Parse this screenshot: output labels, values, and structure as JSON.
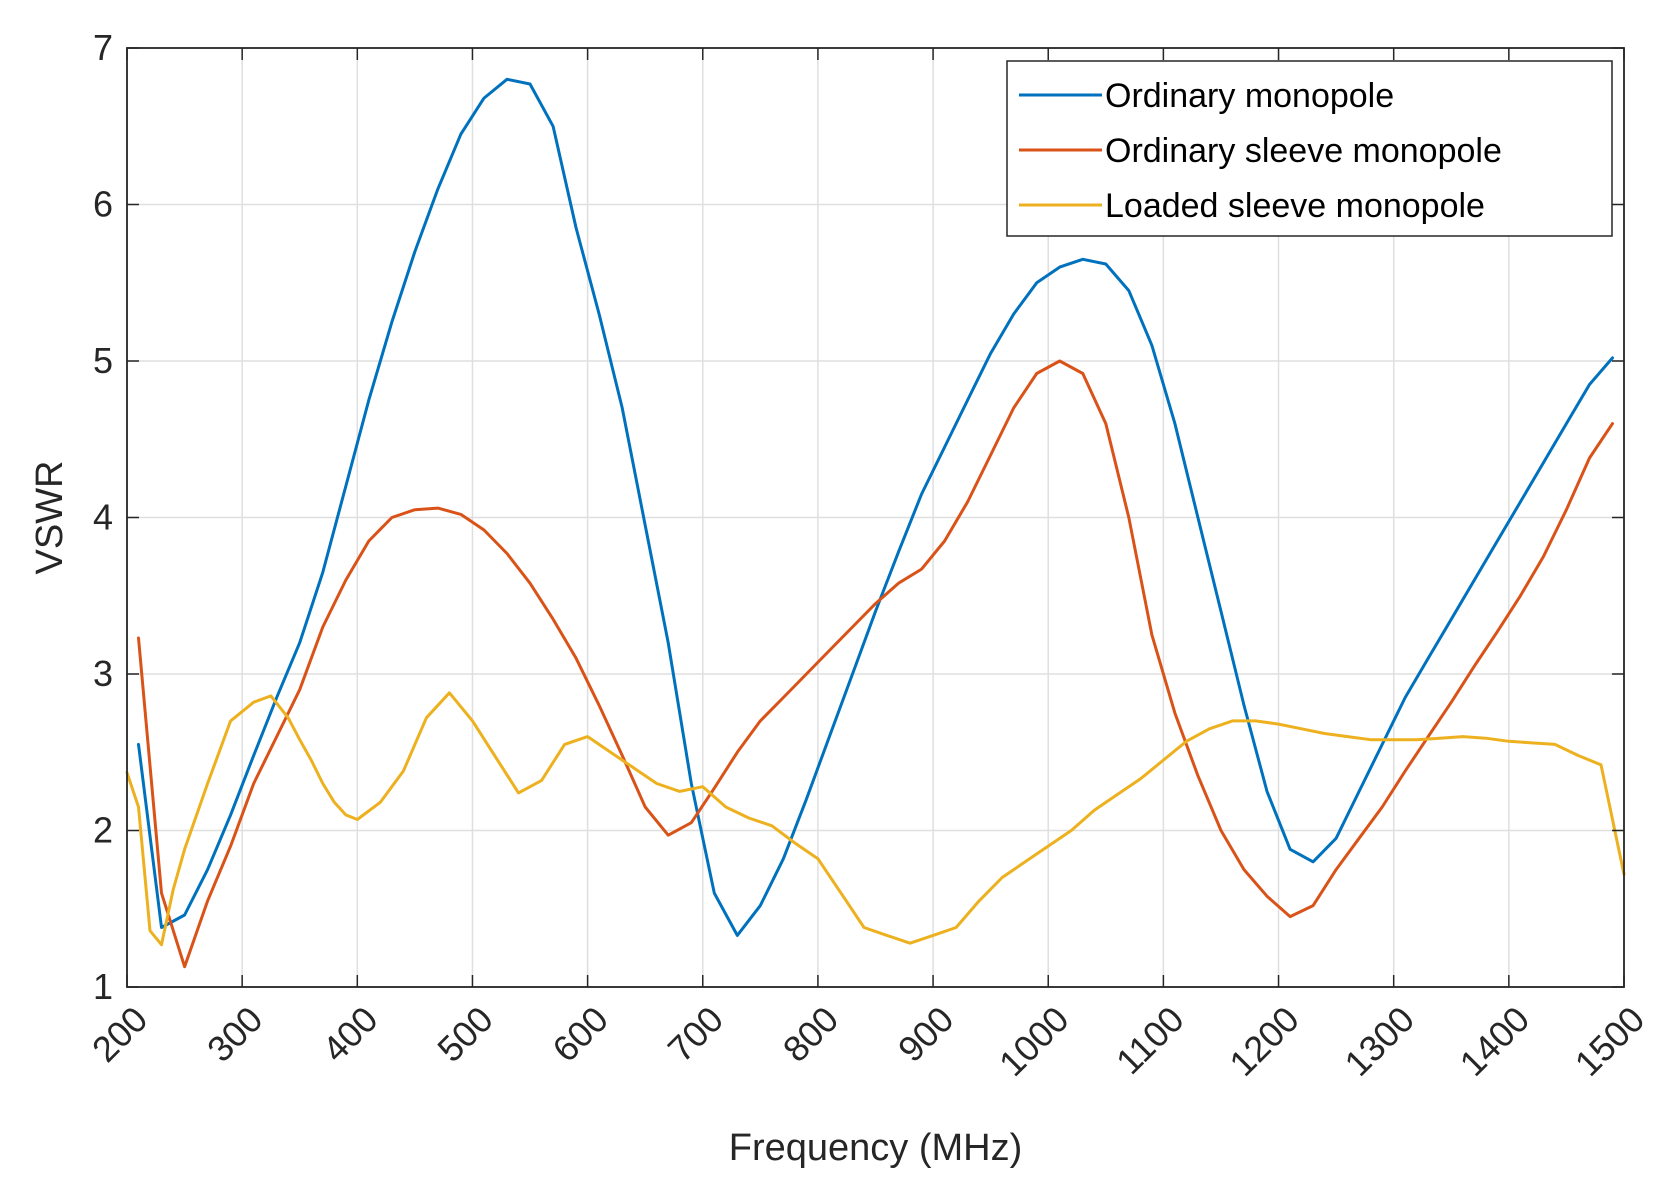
{
  "chart_data": {
    "type": "line",
    "xlabel": "Frequency (MHz)",
    "ylabel": "VSWR",
    "xlim": [
      200,
      1500
    ],
    "ylim": [
      1,
      7
    ],
    "xticks": [
      200,
      300,
      400,
      500,
      600,
      700,
      800,
      900,
      1000,
      1100,
      1200,
      1300,
      1400,
      1500
    ],
    "yticks": [
      1,
      2,
      3,
      4,
      5,
      6,
      7
    ],
    "grid": true,
    "legend_location": "top-right",
    "series": [
      {
        "name": "Ordinary monopole",
        "color": "#0072BD",
        "x": [
          210,
          230,
          250,
          270,
          290,
          310,
          330,
          350,
          370,
          390,
          410,
          430,
          450,
          470,
          490,
          510,
          530,
          550,
          570,
          590,
          610,
          630,
          650,
          670,
          690,
          710,
          730,
          750,
          770,
          790,
          810,
          830,
          850,
          870,
          890,
          910,
          930,
          950,
          970,
          990,
          1010,
          1030,
          1050,
          1070,
          1090,
          1110,
          1130,
          1150,
          1170,
          1190,
          1210,
          1230,
          1250,
          1270,
          1290,
          1310,
          1330,
          1350,
          1370,
          1390,
          1410,
          1430,
          1450,
          1470,
          1490
        ],
        "y": [
          2.55,
          1.38,
          1.46,
          1.75,
          2.1,
          2.48,
          2.85,
          3.2,
          3.65,
          4.2,
          4.75,
          5.25,
          5.7,
          6.1,
          6.45,
          6.68,
          6.8,
          6.77,
          6.5,
          5.85,
          5.3,
          4.7,
          3.95,
          3.2,
          2.3,
          1.6,
          1.33,
          1.52,
          1.82,
          2.2,
          2.6,
          3.0,
          3.4,
          3.78,
          4.15,
          4.45,
          4.75,
          5.05,
          5.3,
          5.5,
          5.6,
          5.65,
          5.62,
          5.45,
          5.1,
          4.6,
          4.0,
          3.4,
          2.8,
          2.25,
          1.88,
          1.8,
          1.95,
          2.25,
          2.55,
          2.85,
          3.1,
          3.35,
          3.6,
          3.85,
          4.1,
          4.35,
          4.6,
          4.85,
          5.02
        ]
      },
      {
        "name": "Ordinary sleeve monopole",
        "color": "#D95319",
        "x": [
          210,
          230,
          250,
          270,
          290,
          310,
          330,
          350,
          370,
          390,
          410,
          430,
          450,
          470,
          490,
          510,
          530,
          550,
          570,
          590,
          610,
          630,
          650,
          670,
          690,
          710,
          730,
          750,
          770,
          790,
          810,
          830,
          850,
          870,
          890,
          910,
          930,
          950,
          970,
          990,
          1010,
          1030,
          1050,
          1070,
          1090,
          1110,
          1130,
          1150,
          1170,
          1190,
          1210,
          1230,
          1250,
          1270,
          1290,
          1310,
          1330,
          1350,
          1370,
          1390,
          1410,
          1430,
          1450,
          1470,
          1490
        ],
        "y": [
          3.23,
          1.6,
          1.13,
          1.55,
          1.9,
          2.3,
          2.6,
          2.9,
          3.3,
          3.6,
          3.85,
          4.0,
          4.05,
          4.06,
          4.02,
          3.92,
          3.77,
          3.58,
          3.35,
          3.1,
          2.8,
          2.48,
          2.15,
          1.97,
          2.05,
          2.27,
          2.5,
          2.7,
          2.85,
          3.0,
          3.15,
          3.3,
          3.45,
          3.58,
          3.67,
          3.85,
          4.1,
          4.4,
          4.7,
          4.92,
          5.0,
          4.92,
          4.6,
          4.0,
          3.25,
          2.75,
          2.35,
          2.0,
          1.75,
          1.58,
          1.45,
          1.52,
          1.75,
          1.95,
          2.15,
          2.38,
          2.6,
          2.82,
          3.05,
          3.27,
          3.5,
          3.75,
          4.05,
          4.38,
          4.6
        ]
      },
      {
        "name": "Loaded sleeve monopole",
        "color": "#EDB120",
        "x": [
          200,
          210,
          220,
          230,
          240,
          250,
          270,
          290,
          310,
          325,
          340,
          350,
          360,
          370,
          380,
          390,
          400,
          420,
          440,
          460,
          480,
          500,
          520,
          540,
          560,
          580,
          600,
          620,
          640,
          660,
          680,
          700,
          720,
          740,
          760,
          780,
          800,
          820,
          840,
          860,
          880,
          900,
          920,
          940,
          960,
          980,
          1000,
          1020,
          1040,
          1060,
          1080,
          1100,
          1120,
          1140,
          1160,
          1180,
          1200,
          1220,
          1240,
          1260,
          1280,
          1300,
          1320,
          1340,
          1360,
          1380,
          1400,
          1420,
          1440,
          1460,
          1480,
          1500
        ],
        "y": [
          2.37,
          2.15,
          1.36,
          1.27,
          1.62,
          1.88,
          2.3,
          2.7,
          2.82,
          2.86,
          2.72,
          2.58,
          2.45,
          2.3,
          2.18,
          2.1,
          2.07,
          2.18,
          2.38,
          2.72,
          2.88,
          2.7,
          2.47,
          2.24,
          2.32,
          2.55,
          2.6,
          2.5,
          2.4,
          2.3,
          2.25,
          2.28,
          2.15,
          2.08,
          2.03,
          1.92,
          1.82,
          1.6,
          1.38,
          1.33,
          1.28,
          1.33,
          1.38,
          1.55,
          1.7,
          1.8,
          1.9,
          2.0,
          2.13,
          2.23,
          2.33,
          2.45,
          2.57,
          2.65,
          2.7,
          2.7,
          2.68,
          2.65,
          2.62,
          2.6,
          2.58,
          2.58,
          2.58,
          2.59,
          2.6,
          2.59,
          2.57,
          2.56,
          2.55,
          2.48,
          2.42,
          1.72
        ]
      }
    ]
  }
}
